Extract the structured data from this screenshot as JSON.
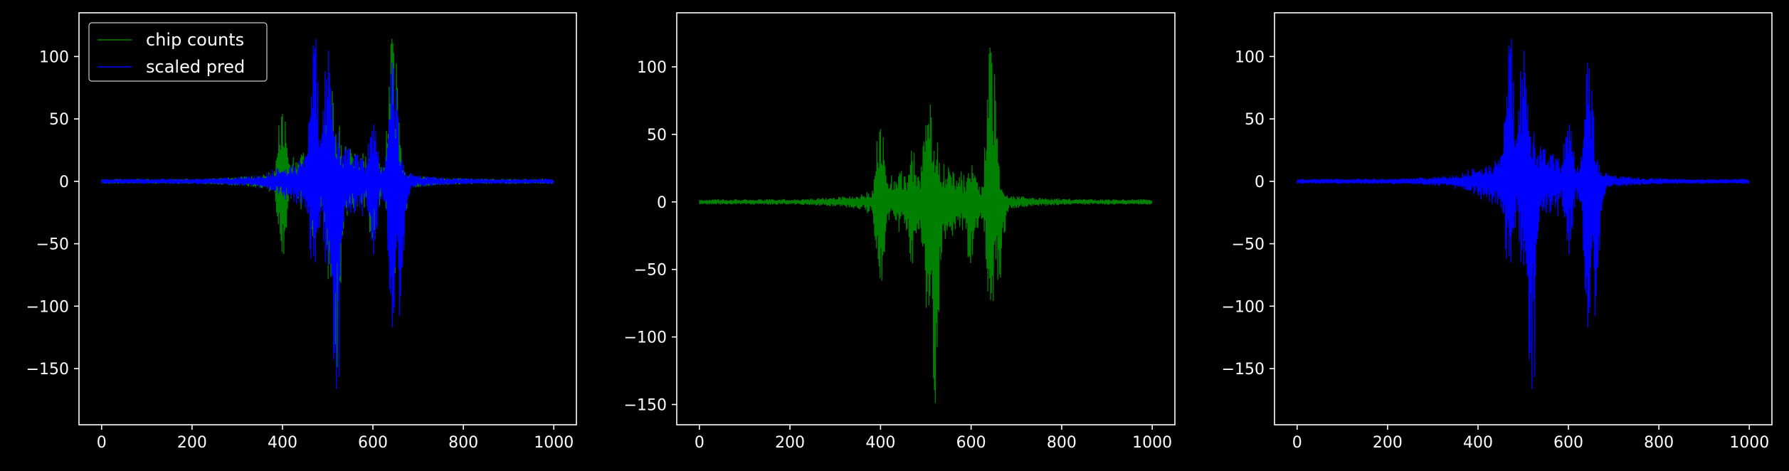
{
  "background": "#000000",
  "axis_color": "#ffffff",
  "chart_data": [
    {
      "type": "line",
      "title": "",
      "xlabel": "",
      "ylabel": "",
      "xlim": [
        -50,
        1050
      ],
      "ylim": [
        -195,
        135
      ],
      "xticks": [
        0,
        200,
        400,
        600,
        800,
        1000
      ],
      "yticks": [
        -150,
        -100,
        -50,
        0,
        50,
        100
      ],
      "grid": false,
      "legend": {
        "placement": "top-left",
        "entries": [
          "chip counts",
          "scaled pred"
        ]
      },
      "series": [
        {
          "name": "chip counts",
          "color": "#008000",
          "n": 1000,
          "seed": 7,
          "envelope_peaks": [
            [
              400,
              63,
              -62
            ],
            [
              470,
              40,
              -50
            ],
            [
              505,
              93,
              -92
            ],
            [
              520,
              55,
              -150
            ],
            [
              600,
              30,
              -60
            ],
            [
              645,
              125,
              -100
            ],
            [
              660,
              15,
              -70
            ]
          ]
        },
        {
          "name": "scaled pred",
          "color": "#0000ff",
          "n": 1000,
          "seed": 11,
          "envelope_peaks": [
            [
              470,
              125,
              -90
            ],
            [
              500,
              110,
              -80
            ],
            [
              520,
              50,
              -183
            ],
            [
              600,
              60,
              -60
            ],
            [
              645,
              105,
              -120
            ],
            [
              660,
              20,
              -110
            ]
          ]
        }
      ]
    },
    {
      "type": "line",
      "title": "",
      "xlabel": "",
      "ylabel": "",
      "xlim": [
        -50,
        1050
      ],
      "ylim": [
        -165,
        140
      ],
      "xticks": [
        0,
        200,
        400,
        600,
        800,
        1000
      ],
      "yticks": [
        -150,
        -100,
        -50,
        0,
        50,
        100
      ],
      "grid": false,
      "series": [
        {
          "color": "#008000",
          "n": 1000,
          "seed": 7,
          "envelope_peaks": [
            [
              400,
              63,
              -62
            ],
            [
              470,
              40,
              -50
            ],
            [
              505,
              93,
              -92
            ],
            [
              520,
              55,
              -150
            ],
            [
              600,
              30,
              -60
            ],
            [
              645,
              125,
              -100
            ],
            [
              660,
              15,
              -70
            ]
          ]
        }
      ]
    },
    {
      "type": "line",
      "title": "",
      "xlabel": "",
      "ylabel": "",
      "xlim": [
        -50,
        1050
      ],
      "ylim": [
        -195,
        135
      ],
      "xticks": [
        0,
        200,
        400,
        600,
        800,
        1000
      ],
      "yticks": [
        -150,
        -100,
        -50,
        0,
        50,
        100
      ],
      "grid": false,
      "series": [
        {
          "color": "#0000ff",
          "n": 1000,
          "seed": 11,
          "envelope_peaks": [
            [
              470,
              125,
              -90
            ],
            [
              500,
              110,
              -80
            ],
            [
              520,
              50,
              -183
            ],
            [
              600,
              60,
              -60
            ],
            [
              645,
              105,
              -120
            ],
            [
              660,
              20,
              -110
            ]
          ]
        }
      ]
    }
  ]
}
